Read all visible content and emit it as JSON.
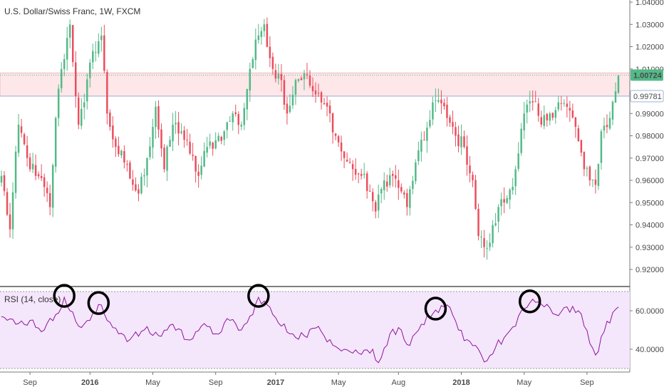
{
  "title": "U.S. Dollar/Swiss Franc, 1W, FXCM",
  "colors": {
    "up": "#53b987",
    "down": "#eb4d5c",
    "rsi_line": "#8e1599",
    "rsi_bg": "#f4e6fb",
    "zone_fill": "#fde7e9",
    "zone_border": "#f2b7bd",
    "last_price_bg": "#53b987",
    "level_bg": "#ffffff",
    "circle": "#000000"
  },
  "price_axis": {
    "ticks": [
      "1.04000",
      "1.03000",
      "1.02000",
      "1.01000",
      "0.99000",
      "0.98000",
      "0.97000",
      "0.96000",
      "0.95000",
      "0.94000",
      "0.93000",
      "0.92000"
    ],
    "tick_values": [
      1.04,
      1.03,
      1.02,
      1.01,
      0.99,
      0.98,
      0.97,
      0.96,
      0.95,
      0.94,
      0.93,
      0.92
    ],
    "last_price_label": "1.00724",
    "level_label": "0.99781"
  },
  "rsi": {
    "label": "RSI (14, close)",
    "ticks": [
      "60.0000",
      "40.0000"
    ],
    "tick_values": [
      60,
      40
    ],
    "upper_band": 70,
    "lower_band": 30
  },
  "time_axis": {
    "labels": [
      "Sep",
      "2016",
      "May",
      "Sep",
      "2017",
      "May",
      "Aug",
      "2018",
      "May",
      "Sep"
    ],
    "bold": [
      false,
      true,
      false,
      false,
      true,
      false,
      false,
      true,
      false,
      false
    ]
  },
  "chart_data": [
    {
      "type": "candlestick",
      "title": "U.S. Dollar/Swiss Franc, 1W, FXCM",
      "ylim": [
        0.914,
        1.043
      ],
      "resistance_zone": [
        0.9978,
        1.0082
      ],
      "last_price": 1.00724,
      "level": 0.99781,
      "x_labels": [
        "Sep",
        "2016",
        "May",
        "Sep",
        "2017",
        "May",
        "Aug",
        "2018",
        "May",
        "Sep"
      ],
      "anchors": [
        [
          0,
          0.962
        ],
        [
          3,
          0.938
        ],
        [
          6,
          0.985
        ],
        [
          9,
          0.97
        ],
        [
          12,
          0.962
        ],
        [
          15,
          0.957
        ],
        [
          17,
          0.948
        ],
        [
          19,
          0.988
        ],
        [
          21,
          1.01
        ],
        [
          24,
          1.03
        ],
        [
          27,
          0.985
        ],
        [
          29,
          0.995
        ],
        [
          32,
          1.018
        ],
        [
          35,
          1.025
        ],
        [
          37,
          0.99
        ],
        [
          40,
          0.975
        ],
        [
          43,
          0.968
        ],
        [
          46,
          0.958
        ],
        [
          48,
          0.954
        ],
        [
          51,
          0.97
        ],
        [
          54,
          0.993
        ],
        [
          57,
          0.965
        ],
        [
          60,
          0.985
        ],
        [
          63,
          0.982
        ],
        [
          66,
          0.972
        ],
        [
          69,
          0.962
        ],
        [
          72,
          0.975
        ],
        [
          75,
          0.978
        ],
        [
          78,
          0.982
        ],
        [
          81,
          0.99
        ],
        [
          84,
          0.985
        ],
        [
          87,
          1.01
        ],
        [
          90,
          1.025
        ],
        [
          92,
          1.03
        ],
        [
          95,
          1.01
        ],
        [
          98,
          1.005
        ],
        [
          100,
          0.99
        ],
        [
          103,
          1.005
        ],
        [
          106,
          1.008
        ],
        [
          109,
          1.0
        ],
        [
          112,
          0.995
        ],
        [
          115,
          0.99
        ],
        [
          117,
          0.98
        ],
        [
          120,
          0.97
        ],
        [
          123,
          0.965
        ],
        [
          126,
          0.962
        ],
        [
          129,
          0.955
        ],
        [
          131,
          0.946
        ],
        [
          134,
          0.96
        ],
        [
          137,
          0.962
        ],
        [
          140,
          0.955
        ],
        [
          142,
          0.948
        ],
        [
          145,
          0.968
        ],
        [
          148,
          0.978
        ],
        [
          151,
          0.995
        ],
        [
          153,
          0.996
        ],
        [
          156,
          0.988
        ],
        [
          159,
          0.98
        ],
        [
          162,
          0.975
        ],
        [
          165,
          0.96
        ],
        [
          167,
          0.935
        ],
        [
          169,
          0.93
        ],
        [
          171,
          0.932
        ],
        [
          174,
          0.948
        ],
        [
          177,
          0.952
        ],
        [
          180,
          0.965
        ],
        [
          183,
          0.99
        ],
        [
          186,
          0.995
        ],
        [
          189,
          0.985
        ],
        [
          192,
          0.99
        ],
        [
          195,
          0.995
        ],
        [
          198,
          0.993
        ],
        [
          201,
          0.984
        ],
        [
          204,
          0.965
        ],
        [
          206,
          0.96
        ],
        [
          208,
          0.958
        ],
        [
          210,
          0.982
        ],
        [
          213,
          0.988
        ],
        [
          215,
          1.0
        ],
        [
          216,
          1.007
        ]
      ],
      "note_volatility": 0.006
    },
    {
      "type": "line",
      "title": "RSI (14, close)",
      "ylim": [
        29,
        71
      ],
      "yticks": [
        60,
        40
      ],
      "bands": [
        70,
        30
      ],
      "x": [
        0,
        5,
        10,
        15,
        19,
        22,
        24,
        27,
        31,
        35,
        37,
        40,
        45,
        50,
        55,
        60,
        65,
        70,
        75,
        80,
        84,
        88,
        90,
        92,
        95,
        98,
        102,
        106,
        110,
        115,
        120,
        125,
        130,
        132,
        136,
        140,
        143,
        147,
        150,
        153,
        156,
        160,
        163,
        166,
        168,
        170,
        173,
        176,
        180,
        183,
        186,
        190,
        194,
        198,
        202,
        204,
        206,
        208,
        211,
        214,
        216
      ],
      "y": [
        57,
        53,
        55,
        50,
        58,
        67,
        60,
        52,
        55,
        63,
        55,
        51,
        45,
        50,
        47,
        53,
        45,
        52,
        48,
        55,
        50,
        58,
        67,
        65,
        58,
        52,
        48,
        47,
        51,
        45,
        40,
        38,
        40,
        33,
        48,
        50,
        42,
        53,
        56,
        59,
        63,
        50,
        45,
        42,
        37,
        34,
        41,
        46,
        52,
        61,
        66,
        62,
        58,
        62,
        60,
        52,
        43,
        37,
        49,
        59,
        62
      ]
    }
  ]
}
